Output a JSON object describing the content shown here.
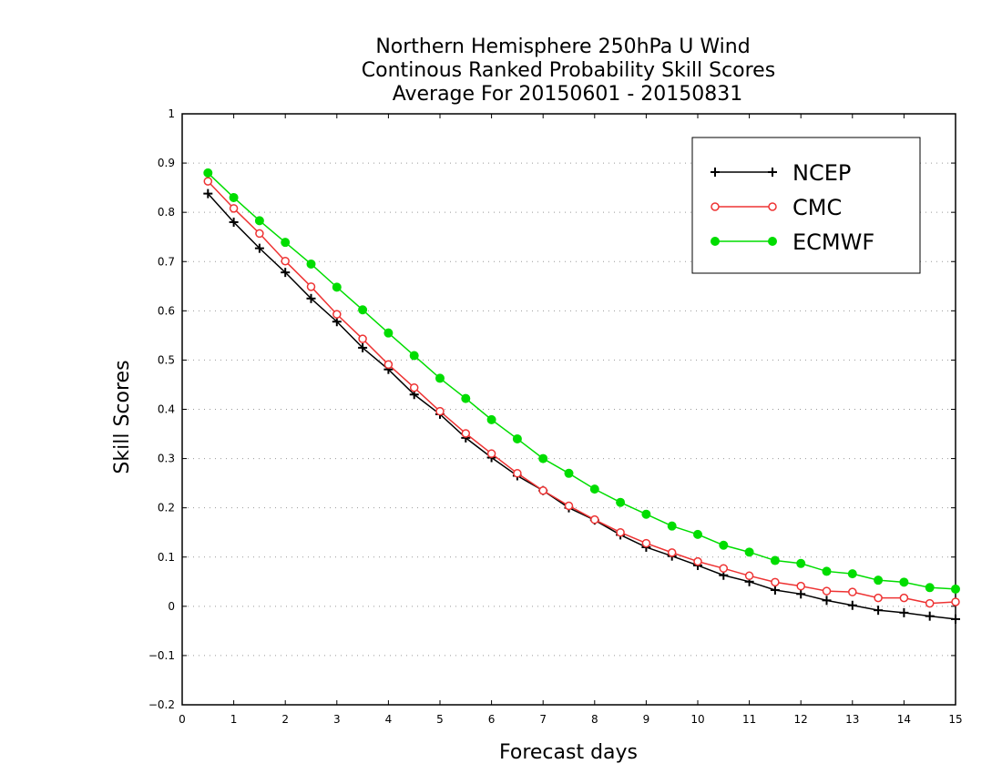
{
  "chart_data": {
    "type": "line",
    "title": [
      "Northern Hemisphere 250hPa U Wind",
      "Continous Ranked Probability Skill Scores",
      "Average For 20150601 - 20150831"
    ],
    "xlabel": "Forecast days",
    "ylabel": "Skill Scores",
    "xlim": [
      0,
      15
    ],
    "ylim": [
      -0.2,
      1
    ],
    "xticks": [
      "0",
      "1",
      "2",
      "3",
      "4",
      "5",
      "6",
      "7",
      "8",
      "9",
      "10",
      "11",
      "12",
      "13",
      "14",
      "15"
    ],
    "yticks": [
      "−0.2",
      "−0.1",
      "0",
      "0.1",
      "0.2",
      "0.3",
      "0.4",
      "0.5",
      "0.6",
      "0.7",
      "0.8",
      "0.9",
      "1"
    ],
    "grid": "horizontal dotted",
    "legend_position": "top-right",
    "x": [
      0.5,
      1,
      1.5,
      2,
      2.5,
      3,
      3.5,
      4,
      4.5,
      5,
      5.5,
      6,
      6.5,
      7,
      7.5,
      8,
      8.5,
      9,
      9.5,
      10,
      10.5,
      11,
      11.5,
      12,
      12.5,
      13,
      13.5,
      14,
      14.5,
      15
    ],
    "series": [
      {
        "name": "NCEP",
        "color": "#000000",
        "marker": "plus",
        "values": [
          0.838,
          0.78,
          0.727,
          0.678,
          0.625,
          0.578,
          0.525,
          0.481,
          0.43,
          0.39,
          0.342,
          0.302,
          0.265,
          0.235,
          0.2,
          0.175,
          0.145,
          0.12,
          0.102,
          0.083,
          0.063,
          0.05,
          0.033,
          0.025,
          0.012,
          0.002,
          -0.008,
          -0.013,
          -0.02,
          -0.026
        ]
      },
      {
        "name": "CMC",
        "color": "#ee3333",
        "marker": "open-circle",
        "values": [
          0.863,
          0.808,
          0.757,
          0.701,
          0.649,
          0.593,
          0.543,
          0.491,
          0.444,
          0.396,
          0.351,
          0.31,
          0.27,
          0.235,
          0.204,
          0.176,
          0.15,
          0.128,
          0.109,
          0.091,
          0.077,
          0.062,
          0.049,
          0.041,
          0.031,
          0.029,
          0.017,
          0.017,
          0.006,
          0.009
        ]
      },
      {
        "name": "ECMWF",
        "color": "#00dd00",
        "marker": "filled-circle",
        "values": [
          0.88,
          0.83,
          0.783,
          0.739,
          0.695,
          0.648,
          0.602,
          0.555,
          0.509,
          0.463,
          0.422,
          0.379,
          0.34,
          0.3,
          0.27,
          0.238,
          0.211,
          0.187,
          0.163,
          0.146,
          0.124,
          0.11,
          0.093,
          0.087,
          0.071,
          0.066,
          0.053,
          0.049,
          0.038,
          0.035
        ]
      }
    ]
  }
}
